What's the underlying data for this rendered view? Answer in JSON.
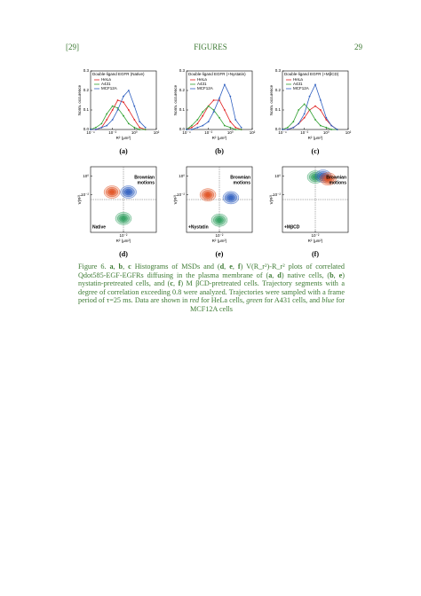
{
  "header": {
    "left": "[29]",
    "center": "FIGURES",
    "right": "29"
  },
  "chart_data": [
    {
      "type": "line",
      "title": "Double-ligand EGFR (Native)",
      "panel_label": "(a)",
      "xlabel": "R² (μm²)",
      "ylabel": "Norm. occurence",
      "xscale": "log",
      "xlim": [
        0.0001,
        100
      ],
      "xticks": [
        {
          "value": 0.0001,
          "label": "10⁻⁴"
        },
        {
          "value": 0.01,
          "label": "10⁻²"
        },
        {
          "value": 1,
          "label": "10⁰"
        },
        {
          "value": 100,
          "label": "10²"
        }
      ],
      "ylim": [
        0,
        0.3
      ],
      "yticks": [
        {
          "value": 0,
          "label": "0.0"
        },
        0.1,
        0.2,
        0.3
      ],
      "x": [
        0.0001,
        0.0003,
        0.001,
        0.003,
        0.01,
        0.03,
        0.1,
        0.3,
        1,
        3,
        10
      ],
      "series": [
        {
          "name": "HeLa",
          "color": "#e02020",
          "values": [
            0,
            0,
            0.01,
            0.05,
            0.1,
            0.15,
            0.14,
            0.1,
            0.05,
            0.01,
            0
          ]
        },
        {
          "name": "A431",
          "color": "#30a030",
          "values": [
            0,
            0.01,
            0.03,
            0.08,
            0.12,
            0.11,
            0.07,
            0.03,
            0.01,
            0,
            0
          ]
        },
        {
          "name": "MCF12A",
          "color": "#3060c0",
          "values": [
            0,
            0,
            0.01,
            0.02,
            0.05,
            0.1,
            0.17,
            0.2,
            0.12,
            0.04,
            0.01
          ]
        }
      ]
    },
    {
      "type": "line",
      "title": "Double-ligand EGFR (+Nystatin)",
      "panel_label": "(b)",
      "xlabel": "R² (μm²)",
      "ylabel": "Norm. occurence",
      "xscale": "log",
      "xlim": [
        0.0001,
        100
      ],
      "xticks": [
        {
          "value": 0.0001,
          "label": "10⁻⁴"
        },
        {
          "value": 0.01,
          "label": "10⁻²"
        },
        {
          "value": 1,
          "label": "10⁰"
        },
        {
          "value": 100,
          "label": "10²"
        }
      ],
      "ylim": [
        0,
        0.3
      ],
      "yticks": [
        {
          "value": 0,
          "label": "0.0"
        },
        0.1,
        0.2,
        0.3
      ],
      "x": [
        0.0001,
        0.0003,
        0.001,
        0.003,
        0.01,
        0.03,
        0.1,
        0.3,
        1,
        3,
        10
      ],
      "series": [
        {
          "name": "HeLa",
          "color": "#e02020",
          "values": [
            0,
            0.01,
            0.03,
            0.07,
            0.12,
            0.15,
            0.15,
            0.1,
            0.04,
            0.01,
            0
          ]
        },
        {
          "name": "A431",
          "color": "#30a030",
          "values": [
            0,
            0.02,
            0.05,
            0.09,
            0.12,
            0.1,
            0.06,
            0.02,
            0.01,
            0,
            0
          ]
        },
        {
          "name": "MCF12A",
          "color": "#3060c0",
          "values": [
            0,
            0,
            0.01,
            0.02,
            0.04,
            0.09,
            0.16,
            0.23,
            0.17,
            0.05,
            0.01
          ]
        }
      ]
    },
    {
      "type": "line",
      "title": "Double-ligand EGFR (+MβCD)",
      "panel_label": "(c)",
      "xlabel": "R² (μm²)",
      "ylabel": "Norm. occurence",
      "xscale": "log",
      "xlim": [
        0.0001,
        100
      ],
      "xticks": [
        {
          "value": 0.0001,
          "label": "10⁻⁴"
        },
        {
          "value": 0.01,
          "label": "10⁻²"
        },
        {
          "value": 1,
          "label": "10⁰"
        },
        {
          "value": 100,
          "label": "10²"
        }
      ],
      "ylim": [
        0,
        0.3
      ],
      "yticks": [
        {
          "value": 0,
          "label": "0.0"
        },
        0.1,
        0.2,
        0.3
      ],
      "x": [
        0.0001,
        0.0003,
        0.001,
        0.003,
        0.01,
        0.03,
        0.1,
        0.3,
        1,
        3,
        10
      ],
      "series": [
        {
          "name": "HeLa",
          "color": "#e02020",
          "values": [
            0,
            0,
            0.01,
            0.03,
            0.06,
            0.1,
            0.12,
            0.1,
            0.05,
            0.02,
            0
          ]
        },
        {
          "name": "A431",
          "color": "#30a030",
          "values": [
            0,
            0.01,
            0.04,
            0.1,
            0.13,
            0.1,
            0.05,
            0.02,
            0.01,
            0,
            0
          ]
        },
        {
          "name": "MCF12A",
          "color": "#3060c0",
          "values": [
            0,
            0,
            0.01,
            0.03,
            0.08,
            0.17,
            0.23,
            0.15,
            0.06,
            0.02,
            0
          ]
        }
      ]
    },
    {
      "type": "contour",
      "panel_label": "(d)",
      "xlabel": "R² (μm²)",
      "ylabel": "V(R²)",
      "annotations": [
        "Brownian",
        "motions"
      ],
      "condition": "Native",
      "xscale": "log",
      "xlim": [
        0.0001,
        1
      ],
      "xticks": [
        {
          "value": 0.01,
          "label": "10⁻²"
        }
      ],
      "ylim": [
        1e-06,
        10
      ],
      "yticks": [
        {
          "value": 1,
          "label": "10⁰"
        },
        {
          "value": 0.01,
          "label": "10⁻²"
        }
      ],
      "series": [
        {
          "color": "#e05020",
          "x": [
            0.002
          ],
          "values": [
            0.02
          ]
        },
        {
          "color": "#3060c0",
          "x": [
            0.02
          ],
          "values": [
            0.02
          ]
        },
        {
          "color": "#30a060",
          "x": [
            0.01
          ],
          "values": [
            3e-05
          ]
        }
      ]
    },
    {
      "type": "contour",
      "panel_label": "(e)",
      "xlabel": "R² (μm²)",
      "ylabel": "V(R²)",
      "annotations": [
        "Brownian",
        "motions"
      ],
      "condition": "+Nystatin",
      "xscale": "log",
      "xlim": [
        0.0001,
        1
      ],
      "xticks": [
        {
          "value": 0.01,
          "label": "10⁻²"
        }
      ],
      "ylim": [
        1e-06,
        10
      ],
      "yticks": [
        {
          "value": 1,
          "label": "10⁰"
        },
        {
          "value": 0.01,
          "label": "10⁻²"
        }
      ],
      "series": [
        {
          "color": "#e05020",
          "x": [
            0.002
          ],
          "values": [
            0.01
          ]
        },
        {
          "color": "#3060c0",
          "x": [
            0.05
          ],
          "values": [
            0.005
          ]
        },
        {
          "color": "#30a060",
          "x": [
            0.01
          ],
          "values": [
            2e-05
          ]
        }
      ]
    },
    {
      "type": "contour",
      "panel_label": "(f)",
      "xlabel": "R² (μm²)",
      "ylabel": "V(R²)",
      "annotations": [
        "Brownian",
        "motions"
      ],
      "condition": "+MβCD",
      "xscale": "log",
      "xlim": [
        0.0001,
        1
      ],
      "xticks": [
        {
          "value": 0.01,
          "label": "10⁻²"
        }
      ],
      "ylim": [
        1e-06,
        10
      ],
      "yticks": [
        {
          "value": 1,
          "label": "10⁰"
        },
        {
          "value": 0.01,
          "label": "10⁻²"
        }
      ],
      "series": [
        {
          "color": "#30a060",
          "x": [
            0.01
          ],
          "values": [
            0.8
          ]
        },
        {
          "color": "#3060c0",
          "x": [
            0.03
          ],
          "values": [
            1
          ]
        },
        {
          "color": "#e05020",
          "x": [
            0.06
          ],
          "values": [
            0.5
          ]
        }
      ]
    }
  ],
  "caption": [
    {
      "text": "Figure 6. "
    },
    {
      "text": "a",
      "bold": true
    },
    {
      "text": ", "
    },
    {
      "text": "b",
      "bold": true
    },
    {
      "text": ", "
    },
    {
      "text": "c",
      "bold": true
    },
    {
      "text": " Histograms of MSDs and ("
    },
    {
      "text": "d",
      "bold": true
    },
    {
      "text": ", "
    },
    {
      "text": "e",
      "bold": true
    },
    {
      "text": ", "
    },
    {
      "text": "f",
      "bold": true
    },
    {
      "text": ") V(R_r²)-R_r² plots of correlated Qdot585-EGF-EGFRs diffusing in the plasma membrane of ("
    },
    {
      "text": "a",
      "bold": true
    },
    {
      "text": ", "
    },
    {
      "text": "d",
      "bold": true
    },
    {
      "text": ") native cells, ("
    },
    {
      "text": "b",
      "bold": true
    },
    {
      "text": ", "
    },
    {
      "text": "e",
      "bold": true
    },
    {
      "text": ") nystatin-pretreated cells, and ("
    },
    {
      "text": "c",
      "bold": true
    },
    {
      "text": ", "
    },
    {
      "text": "f",
      "bold": true
    },
    {
      "text": ") M βCD-pretreated cells. Trajectory segments with a degree of correlation exceeding 0.8 were analyzed. Trajectories were sampled with a frame period of τ=25 ms. Data are shown in "
    },
    {
      "text": "red",
      "italic": true
    },
    {
      "text": " for HeLa cells, "
    },
    {
      "text": "green",
      "italic": true
    },
    {
      "text": " for A431 cells, and "
    },
    {
      "text": "blue",
      "italic": true
    },
    {
      "text": " for MCF12A cells"
    }
  ]
}
